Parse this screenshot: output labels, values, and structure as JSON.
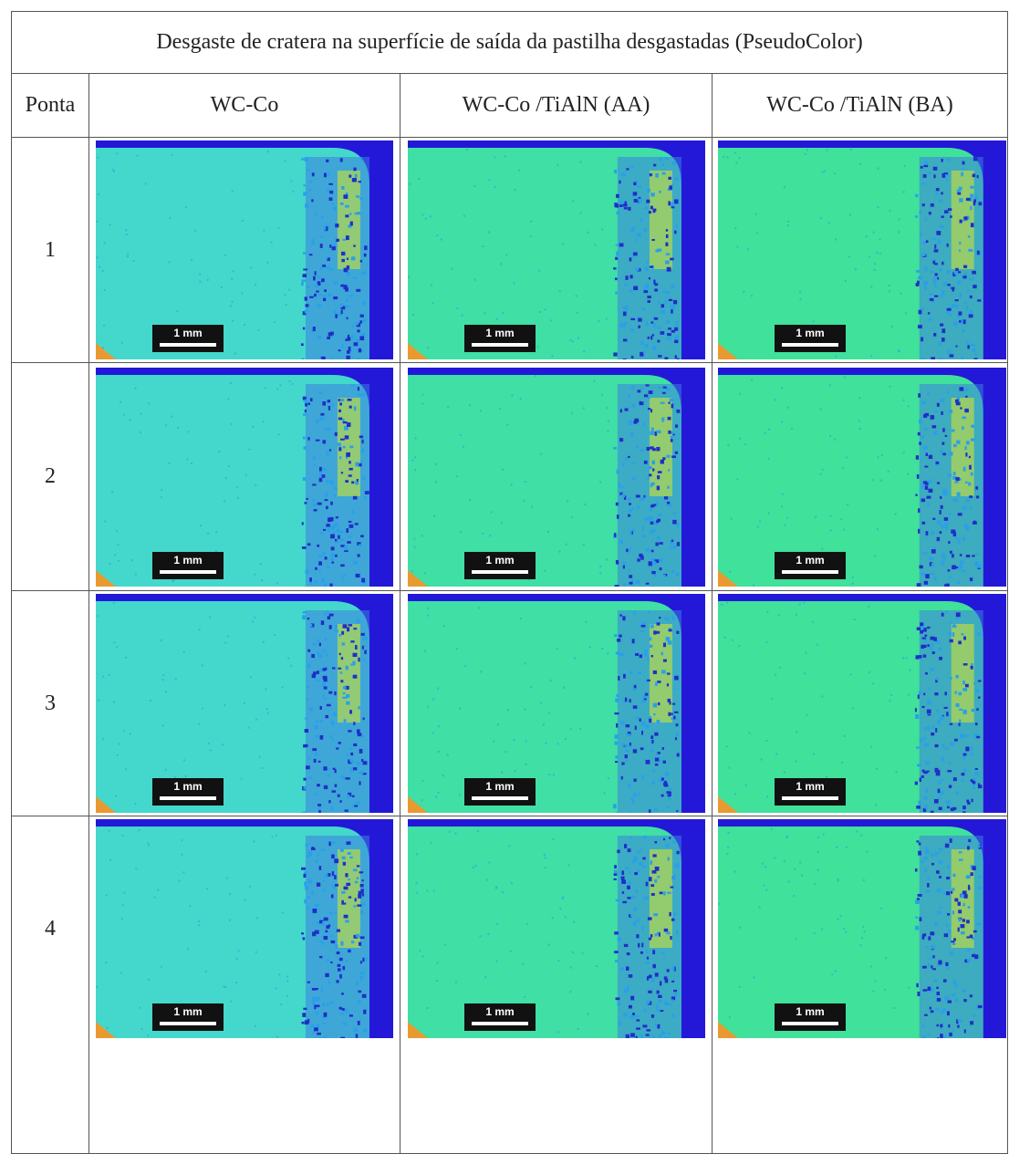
{
  "title": "Desgaste de cratera na superfície de saída da pastilha desgastadas (PseudoColor)",
  "header": [
    "Ponta",
    "WC-Co",
    "WC-Co /TiAlN (AA)",
    "WC-Co /TiAlN (BA)"
  ],
  "rows": [
    {
      "label": "1",
      "scale_bars": [
        "1 mm",
        "1 mm",
        "1 mm"
      ]
    },
    {
      "label": "2",
      "scale_bars": [
        "1 mm",
        "1 mm",
        "1 mm"
      ]
    },
    {
      "label": "3",
      "scale_bars": [
        "1 mm",
        "1 mm",
        "1 mm"
      ]
    },
    {
      "label": "4",
      "scale_bars": [
        "1 mm",
        "1 mm",
        "1 mm"
      ]
    }
  ]
}
